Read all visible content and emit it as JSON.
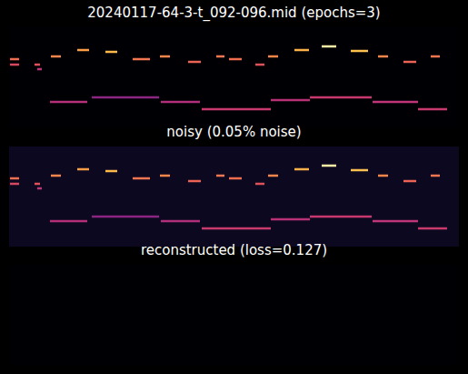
{
  "chart_data": [
    {
      "type": "piano_roll",
      "title": "20240117-64-3-t_092-096.mid (epochs=3)",
      "xlim": [
        0,
        495
      ],
      "ylim": [
        0,
        110
      ],
      "tick_labels": false,
      "notes": [
        {
          "start": 1,
          "end": 11,
          "pitch": 75,
          "color": "#f06e4e"
        },
        {
          "start": 1,
          "end": 11,
          "pitch": 69,
          "color": "#d9475f"
        },
        {
          "start": 28,
          "end": 34,
          "pitch": 69,
          "color": "#e0505a"
        },
        {
          "start": 31,
          "end": 36,
          "pitch": 64,
          "color": "#c0357a"
        },
        {
          "start": 46,
          "end": 57,
          "pitch": 78,
          "color": "#f8864a"
        },
        {
          "start": 75,
          "end": 88,
          "pitch": 85,
          "color": "#fb9d45"
        },
        {
          "start": 106,
          "end": 119,
          "pitch": 83,
          "color": "#fdb84a"
        },
        {
          "start": 136,
          "end": 155,
          "pitch": 75,
          "color": "#f37651"
        },
        {
          "start": 166,
          "end": 177,
          "pitch": 78,
          "color": "#f8864a"
        },
        {
          "start": 197,
          "end": 211,
          "pitch": 72,
          "color": "#ec6255"
        },
        {
          "start": 228,
          "end": 237,
          "pitch": 78,
          "color": "#f37651"
        },
        {
          "start": 242,
          "end": 256,
          "pitch": 75,
          "color": "#f06e4e"
        },
        {
          "start": 271,
          "end": 281,
          "pitch": 69,
          "color": "#e0505a"
        },
        {
          "start": 285,
          "end": 296,
          "pitch": 78,
          "color": "#f8864a"
        },
        {
          "start": 314,
          "end": 330,
          "pitch": 85,
          "color": "#fbb04a"
        },
        {
          "start": 344,
          "end": 360,
          "pitch": 89,
          "color": "#fcf1a6"
        },
        {
          "start": 376,
          "end": 395,
          "pitch": 84,
          "color": "#fdc150"
        },
        {
          "start": 406,
          "end": 417,
          "pitch": 78,
          "color": "#f8864a"
        },
        {
          "start": 434,
          "end": 448,
          "pitch": 72,
          "color": "#ec6255"
        },
        {
          "start": 464,
          "end": 474,
          "pitch": 78,
          "color": "#f37651"
        },
        {
          "start": 45,
          "end": 86,
          "pitch": 28,
          "color": "#b42f78"
        },
        {
          "start": 91,
          "end": 165,
          "pitch": 33,
          "color": "#8c2582"
        },
        {
          "start": 167,
          "end": 210,
          "pitch": 28,
          "color": "#b02e7a"
        },
        {
          "start": 212,
          "end": 288,
          "pitch": 20,
          "color": "#c83a6c"
        },
        {
          "start": 288,
          "end": 331,
          "pitch": 30,
          "color": "#b83076"
        },
        {
          "start": 331,
          "end": 399,
          "pitch": 33,
          "color": "#c8386e"
        },
        {
          "start": 400,
          "end": 450,
          "pitch": 28,
          "color": "#c0357a"
        },
        {
          "start": 450,
          "end": 482,
          "pitch": 20,
          "color": "#c83a6c"
        }
      ]
    },
    {
      "type": "piano_roll",
      "title": "noisy (0.05% noise)",
      "xlim": [
        0,
        495
      ],
      "ylim": [
        0,
        110
      ],
      "tick_labels": false,
      "notes": [
        {
          "start": 1,
          "end": 11,
          "pitch": 75,
          "color": "#f06e4e"
        },
        {
          "start": 1,
          "end": 11,
          "pitch": 69,
          "color": "#d9475f"
        },
        {
          "start": 28,
          "end": 34,
          "pitch": 69,
          "color": "#e0505a"
        },
        {
          "start": 31,
          "end": 36,
          "pitch": 64,
          "color": "#c0357a"
        },
        {
          "start": 46,
          "end": 57,
          "pitch": 78,
          "color": "#f8864a"
        },
        {
          "start": 75,
          "end": 88,
          "pitch": 85,
          "color": "#fb9d45"
        },
        {
          "start": 106,
          "end": 119,
          "pitch": 83,
          "color": "#fdb84a"
        },
        {
          "start": 136,
          "end": 155,
          "pitch": 75,
          "color": "#f37651"
        },
        {
          "start": 166,
          "end": 177,
          "pitch": 78,
          "color": "#f8864a"
        },
        {
          "start": 197,
          "end": 211,
          "pitch": 72,
          "color": "#ec6255"
        },
        {
          "start": 228,
          "end": 237,
          "pitch": 78,
          "color": "#f37651"
        },
        {
          "start": 242,
          "end": 256,
          "pitch": 75,
          "color": "#f06e4e"
        },
        {
          "start": 271,
          "end": 281,
          "pitch": 69,
          "color": "#e0505a"
        },
        {
          "start": 285,
          "end": 296,
          "pitch": 78,
          "color": "#f8864a"
        },
        {
          "start": 314,
          "end": 330,
          "pitch": 85,
          "color": "#fbb04a"
        },
        {
          "start": 344,
          "end": 360,
          "pitch": 89,
          "color": "#fcf1a6"
        },
        {
          "start": 376,
          "end": 395,
          "pitch": 84,
          "color": "#fdc150"
        },
        {
          "start": 406,
          "end": 417,
          "pitch": 78,
          "color": "#f8864a"
        },
        {
          "start": 434,
          "end": 448,
          "pitch": 72,
          "color": "#ec6255"
        },
        {
          "start": 464,
          "end": 474,
          "pitch": 78,
          "color": "#f37651"
        },
        {
          "start": 45,
          "end": 86,
          "pitch": 28,
          "color": "#b42f78"
        },
        {
          "start": 91,
          "end": 165,
          "pitch": 33,
          "color": "#8c2582"
        },
        {
          "start": 167,
          "end": 210,
          "pitch": 28,
          "color": "#b02e7a"
        },
        {
          "start": 212,
          "end": 288,
          "pitch": 20,
          "color": "#c83a6c"
        },
        {
          "start": 288,
          "end": 331,
          "pitch": 30,
          "color": "#b83076"
        },
        {
          "start": 331,
          "end": 399,
          "pitch": 33,
          "color": "#c8386e"
        },
        {
          "start": 400,
          "end": 450,
          "pitch": 28,
          "color": "#c0357a"
        },
        {
          "start": 450,
          "end": 482,
          "pitch": 20,
          "color": "#c83a6c"
        }
      ]
    },
    {
      "type": "piano_roll",
      "title": "reconstructed (loss=0.127)",
      "xlim": [
        0,
        495
      ],
      "ylim": [
        0,
        110
      ],
      "tick_labels": false,
      "notes": []
    }
  ]
}
